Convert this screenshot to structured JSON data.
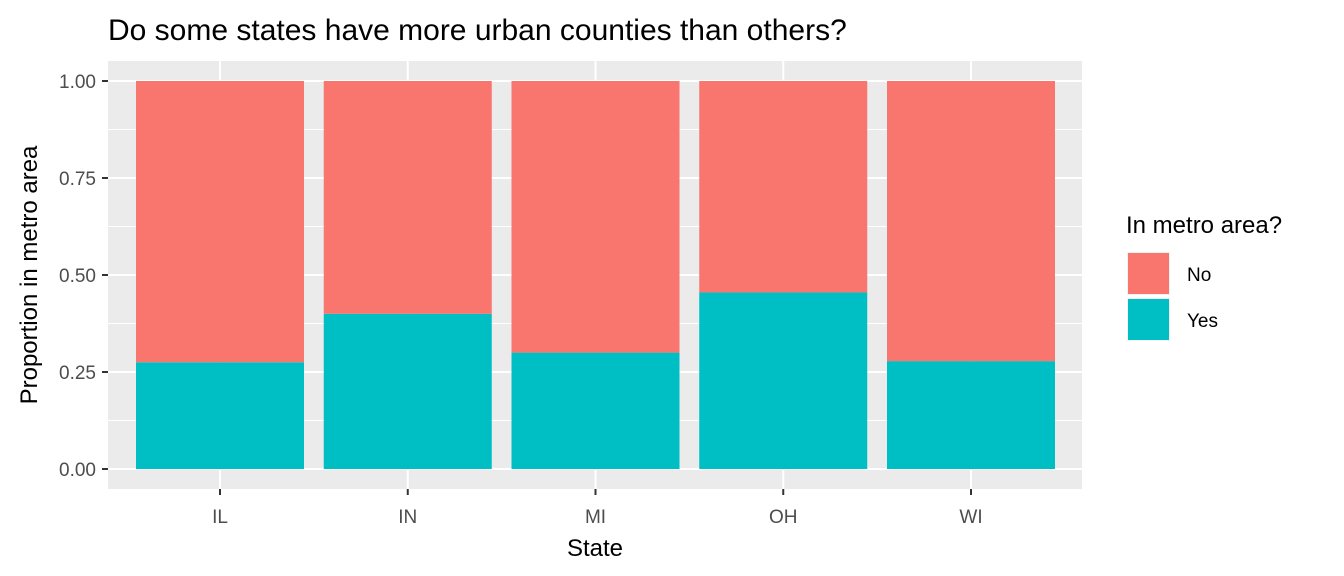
{
  "chart_data": {
    "type": "bar",
    "stacked": true,
    "title": "Do some states have more urban counties than others?",
    "xlabel": "State",
    "ylabel": "Proportion in metro area",
    "categories": [
      "IL",
      "IN",
      "MI",
      "OH",
      "WI"
    ],
    "y_ticks": [
      "0.00",
      "0.25",
      "0.50",
      "0.75",
      "1.00"
    ],
    "ylim": [
      0,
      1
    ],
    "grid": true,
    "legend": {
      "title": "In metro area?",
      "position": "right",
      "entries": [
        "No",
        "Yes"
      ]
    },
    "series": [
      {
        "name": "Yes",
        "color": "#00bfc4",
        "values": [
          0.275,
          0.4,
          0.3,
          0.455,
          0.278
        ]
      },
      {
        "name": "No",
        "color": "#f8766d",
        "values": [
          0.725,
          0.6,
          0.7,
          0.545,
          0.722
        ]
      }
    ],
    "panel_background": "#ebebeb",
    "grid_color": "#ffffff"
  }
}
